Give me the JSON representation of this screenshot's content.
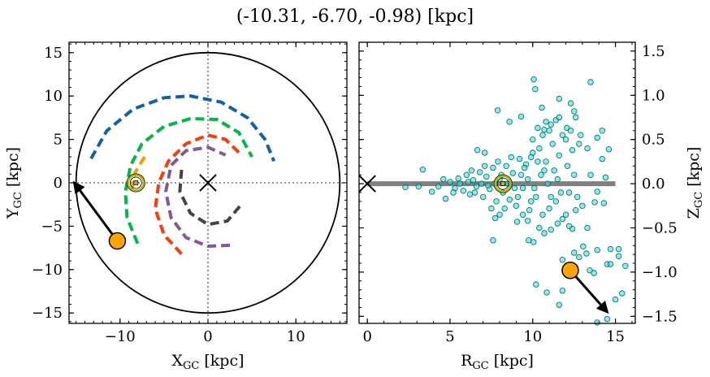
{
  "title": "(-10.31, -6.70, -0.98) [kpc]",
  "colors": {
    "arm_blue": "#1062a8",
    "arm_green": "#00b848",
    "arm_orange": "#f5a000",
    "arm_red": "#ff3a0a",
    "arm_purple": "#7e5a98",
    "arm_gray": "#444444",
    "target": "#ffa500",
    "sun": "#b8b800",
    "scatter_fill": "#40e0d8",
    "scatter_edge": "#006a6a",
    "plane": "#808080"
  },
  "chart_data": [
    {
      "type": "line",
      "xlabel": "X",
      "xlabel_sub": "GC",
      "xlabel_unit": " [kpc]",
      "ylabel": "Y",
      "ylabel_sub": "GC",
      "ylabel_unit": " [kpc]",
      "xlim": [
        -15.8,
        15.8
      ],
      "ylim": [
        -16.2,
        16.2
      ],
      "xticks": [
        -10,
        0,
        10
      ],
      "yticks": [
        -15,
        -10,
        -5,
        0,
        5,
        10,
        15
      ],
      "grid": false,
      "boundary_circle_radius": 15,
      "galactic_center": [
        0,
        0
      ],
      "sun": [
        -8.2,
        0
      ],
      "target": [
        -10.31,
        -6.7
      ],
      "arrow_to": [
        -15.2,
        0.0
      ],
      "arms": [
        {
          "color": "arm_blue",
          "points": [
            [
              -13.3,
              2.8
            ],
            [
              -11.5,
              6
            ],
            [
              -8.5,
              8.5
            ],
            [
              -5,
              9.8
            ],
            [
              -2,
              10
            ],
            [
              1.5,
              9.3
            ],
            [
              4.5,
              7.5
            ],
            [
              6.5,
              5
            ],
            [
              7.5,
              2.5
            ]
          ]
        },
        {
          "color": "arm_green",
          "points": [
            [
              -8,
              -7
            ],
            [
              -9.2,
              -4
            ],
            [
              -9.4,
              -1
            ],
            [
              -8.8,
              2
            ],
            [
              -7.5,
              4.5
            ],
            [
              -5,
              6.5
            ],
            [
              -2,
              7.4
            ],
            [
              1,
              7.3
            ],
            [
              3.5,
              5.8
            ],
            [
              5,
              3
            ]
          ]
        },
        {
          "color": "arm_orange",
          "points": [
            [
              -7.2,
              3
            ],
            [
              -8.3,
              1.2
            ],
            [
              -8.7,
              -1
            ]
          ]
        },
        {
          "color": "arm_red",
          "points": [
            [
              -3,
              -8.2
            ],
            [
              -5,
              -6
            ],
            [
              -6,
              -3
            ],
            [
              -5.6,
              0
            ],
            [
              -4.5,
              2.5
            ],
            [
              -2.5,
              4.5
            ],
            [
              0,
              5.5
            ],
            [
              2,
              5
            ],
            [
              3.5,
              3.5
            ]
          ]
        },
        {
          "color": "arm_purple",
          "points": [
            [
              2.5,
              -7.2
            ],
            [
              0,
              -7.3
            ],
            [
              -2.5,
              -6.3
            ],
            [
              -4.2,
              -4
            ],
            [
              -4.8,
              -1
            ],
            [
              -4.2,
              2
            ],
            [
              -2.5,
              3.7
            ],
            [
              0,
              4.1
            ],
            [
              2,
              3.2
            ]
          ]
        },
        {
          "color": "arm_gray",
          "points": [
            [
              -3,
              1.5
            ],
            [
              -3.2,
              -1
            ],
            [
              -2,
              -3.5
            ],
            [
              0,
              -4.8
            ],
            [
              2.2,
              -4.4
            ],
            [
              3.8,
              -2.5
            ]
          ]
        }
      ]
    },
    {
      "type": "scatter",
      "xlabel": "R",
      "xlabel_sub": "GC",
      "xlabel_unit": " [kpc]",
      "ylabel": "Z",
      "ylabel_sub": "GC",
      "ylabel_unit": " [kpc]",
      "xlim": [
        -0.5,
        16.2
      ],
      "ylim": [
        -1.58,
        1.6
      ],
      "xticks": [
        0,
        5,
        10,
        15
      ],
      "yticks": [
        -1.5,
        -1.0,
        -0.5,
        0.0,
        0.5,
        1.0,
        1.5
      ],
      "ytick_labels": [
        "−1.5",
        "−1.0",
        "−0.5",
        "0.0",
        "0.5",
        "1.0",
        "1.5"
      ],
      "grid": false,
      "plane_line": [
        0,
        15
      ],
      "galactic_center": [
        0,
        0
      ],
      "sun": [
        8.2,
        0
      ],
      "target": [
        12.27,
        -0.98
      ],
      "arrow_to": [
        14.5,
        -1.45
      ],
      "points": [
        [
          10.06,
          1.18
        ],
        [
          10.15,
          1.07
        ],
        [
          13.5,
          1.15
        ],
        [
          7.88,
          0.83
        ],
        [
          8.59,
          0.7
        ],
        [
          9.3,
          0.76
        ],
        [
          11.6,
          0.96
        ],
        [
          12.3,
          0.91
        ],
        [
          10.55,
          0.86
        ],
        [
          12.5,
          0.82
        ],
        [
          12.6,
          0.75
        ],
        [
          11.4,
          0.72
        ],
        [
          10.3,
          0.63
        ],
        [
          10.7,
          0.61
        ],
        [
          11.1,
          0.67
        ],
        [
          12.07,
          0.63
        ],
        [
          14.2,
          0.6
        ],
        [
          13.9,
          0.52
        ],
        [
          14.6,
          0.39
        ],
        [
          14.2,
          0.28
        ],
        [
          14.4,
          0.07
        ],
        [
          13.9,
          -0.09
        ],
        [
          14.3,
          -0.22
        ],
        [
          13.75,
          -0.21
        ],
        [
          13.3,
          -0.5
        ],
        [
          12.4,
          -0.51
        ],
        [
          12.2,
          -0.48
        ],
        [
          11.1,
          -0.52
        ],
        [
          10.7,
          -0.56
        ],
        [
          10.05,
          -0.66
        ],
        [
          9.75,
          -0.64
        ],
        [
          7.6,
          -0.64
        ],
        [
          9.06,
          -0.43
        ],
        [
          7.73,
          -0.39
        ],
        [
          3.35,
          0.16
        ],
        [
          2.3,
          -0.04
        ],
        [
          3.1,
          -0.03
        ],
        [
          3.9,
          -0.09
        ],
        [
          4.73,
          -0.17
        ],
        [
          6.65,
          0.38
        ],
        [
          7.1,
          0.35
        ],
        [
          13.05,
          -0.71
        ],
        [
          12.5,
          -0.78
        ],
        [
          12.8,
          -0.83
        ],
        [
          13.25,
          -0.79
        ],
        [
          13.9,
          -0.75
        ],
        [
          14.7,
          -0.74
        ],
        [
          15.2,
          -0.74
        ],
        [
          15.2,
          -0.82
        ],
        [
          11.8,
          -0.86
        ],
        [
          14.5,
          -0.91
        ],
        [
          14.7,
          -0.91
        ],
        [
          15.6,
          -0.93
        ],
        [
          13.45,
          -0.98
        ],
        [
          13.7,
          -1.01
        ],
        [
          10.2,
          -1.14
        ],
        [
          10.85,
          -1.23
        ],
        [
          11.8,
          -1.21
        ],
        [
          11.6,
          -1.37
        ],
        [
          15.0,
          -1.31
        ],
        [
          15.4,
          -1.24
        ],
        [
          14.5,
          -1.53
        ],
        [
          13.9,
          -1.57
        ],
        [
          5.0,
          0.02
        ],
        [
          5.3,
          -0.05
        ],
        [
          5.5,
          0.06
        ],
        [
          5.8,
          -0.08
        ],
        [
          6.0,
          0.1
        ],
        [
          6.2,
          -0.12
        ],
        [
          6.4,
          0.04
        ],
        [
          6.6,
          -0.03
        ],
        [
          6.8,
          0.13
        ],
        [
          7.0,
          -0.15
        ],
        [
          7.2,
          0.08
        ],
        [
          7.4,
          -0.06
        ],
        [
          7.6,
          0.18
        ],
        [
          7.8,
          -0.2
        ],
        [
          8.0,
          0.05
        ],
        [
          8.2,
          -0.1
        ],
        [
          8.4,
          0.2
        ],
        [
          8.6,
          -0.18
        ],
        [
          8.8,
          0.12
        ],
        [
          9.0,
          -0.25
        ],
        [
          9.2,
          0.28
        ],
        [
          9.4,
          -0.05
        ],
        [
          9.6,
          0.22
        ],
        [
          9.8,
          -0.3
        ],
        [
          10.0,
          0.35
        ],
        [
          10.2,
          -0.15
        ],
        [
          10.4,
          0.4
        ],
        [
          10.6,
          -0.35
        ],
        [
          10.8,
          0.25
        ],
        [
          11.0,
          -0.28
        ],
        [
          11.2,
          0.45
        ],
        [
          11.4,
          -0.2
        ],
        [
          11.6,
          0.32
        ],
        [
          11.8,
          -0.4
        ],
        [
          12.0,
          0.5
        ],
        [
          12.2,
          -0.1
        ],
        [
          12.4,
          0.38
        ],
        [
          12.6,
          -0.3
        ],
        [
          12.8,
          0.45
        ],
        [
          13.0,
          -0.25
        ],
        [
          5.6,
          0.0
        ],
        [
          6.1,
          0.02
        ],
        [
          6.5,
          -0.1
        ],
        [
          6.9,
          0.0
        ],
        [
          7.3,
          -0.02
        ],
        [
          7.7,
          0.0
        ],
        [
          8.1,
          0.1
        ],
        [
          8.5,
          0.0
        ],
        [
          8.9,
          -0.05
        ],
        [
          9.3,
          0.1
        ],
        [
          9.7,
          0.05
        ],
        [
          10.1,
          -0.05
        ],
        [
          10.5,
          0.1
        ],
        [
          10.9,
          0.0
        ],
        [
          11.3,
          0.15
        ],
        [
          11.7,
          -0.1
        ],
        [
          12.1,
          0.2
        ],
        [
          9.1,
          -0.15
        ],
        [
          9.5,
          0.18
        ],
        [
          9.9,
          -0.2
        ],
        [
          10.3,
          0.25
        ],
        [
          10.7,
          0.15
        ],
        [
          11.1,
          -0.15
        ],
        [
          11.5,
          0.05
        ],
        [
          7.1,
          0.2
        ],
        [
          7.9,
          0.25
        ],
        [
          8.3,
          -0.28
        ],
        [
          8.7,
          0.3
        ],
        [
          9.4,
          -0.35
        ],
        [
          10.0,
          0.5
        ],
        [
          10.6,
          0.55
        ],
        [
          11.0,
          0.6
        ],
        [
          11.8,
          0.55
        ],
        [
          12.3,
          0.6
        ],
        [
          12.9,
          0.55
        ],
        [
          13.3,
          0.4
        ],
        [
          10.4,
          -0.5
        ],
        [
          11.5,
          -0.45
        ],
        [
          12.0,
          -0.35
        ],
        [
          12.7,
          -0.15
        ],
        [
          13.5,
          0.1
        ],
        [
          6.3,
          0.15
        ],
        [
          5.2,
          -0.1
        ],
        [
          4.6,
          0.05
        ],
        [
          4.3,
          -0.03
        ],
        [
          7.5,
          -0.28
        ],
        [
          8.0,
          -0.35
        ],
        [
          9.7,
          -0.42
        ],
        [
          10.8,
          0.7
        ],
        [
          11.6,
          0.75
        ],
        [
          9.9,
          0.3
        ],
        [
          12.5,
          0.1
        ]
      ]
    }
  ]
}
